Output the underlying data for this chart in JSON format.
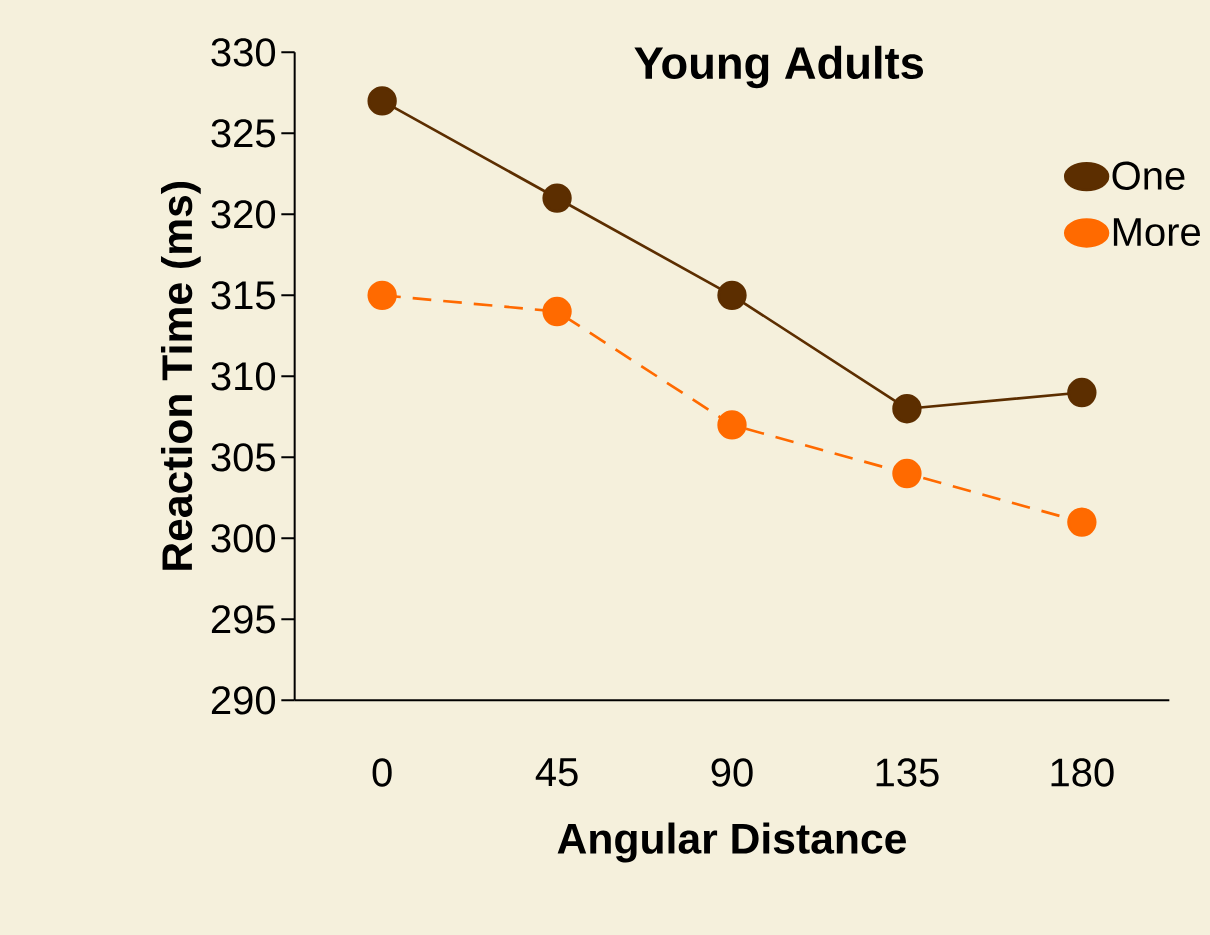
{
  "chart_data": {
    "type": "line",
    "title": "Young Adults",
    "xlabel": "Angular Distance",
    "ylabel": "Reaction Time (ms)",
    "categories": [
      "0",
      "45",
      "90",
      "135",
      "180"
    ],
    "series": [
      {
        "name": "One",
        "color": "#5c2e00",
        "values": [
          327,
          321,
          315,
          308,
          309
        ],
        "line_style": "solid"
      },
      {
        "name": "More",
        "color": "#ff6a00",
        "values": [
          315,
          314,
          307,
          304,
          301
        ],
        "line_style": "dashed"
      }
    ],
    "marker": "circle",
    "legend": "top right",
    "ylim": [
      290,
      330
    ],
    "yticks": [
      290,
      295,
      300,
      305,
      310,
      315,
      320,
      325,
      330
    ]
  }
}
